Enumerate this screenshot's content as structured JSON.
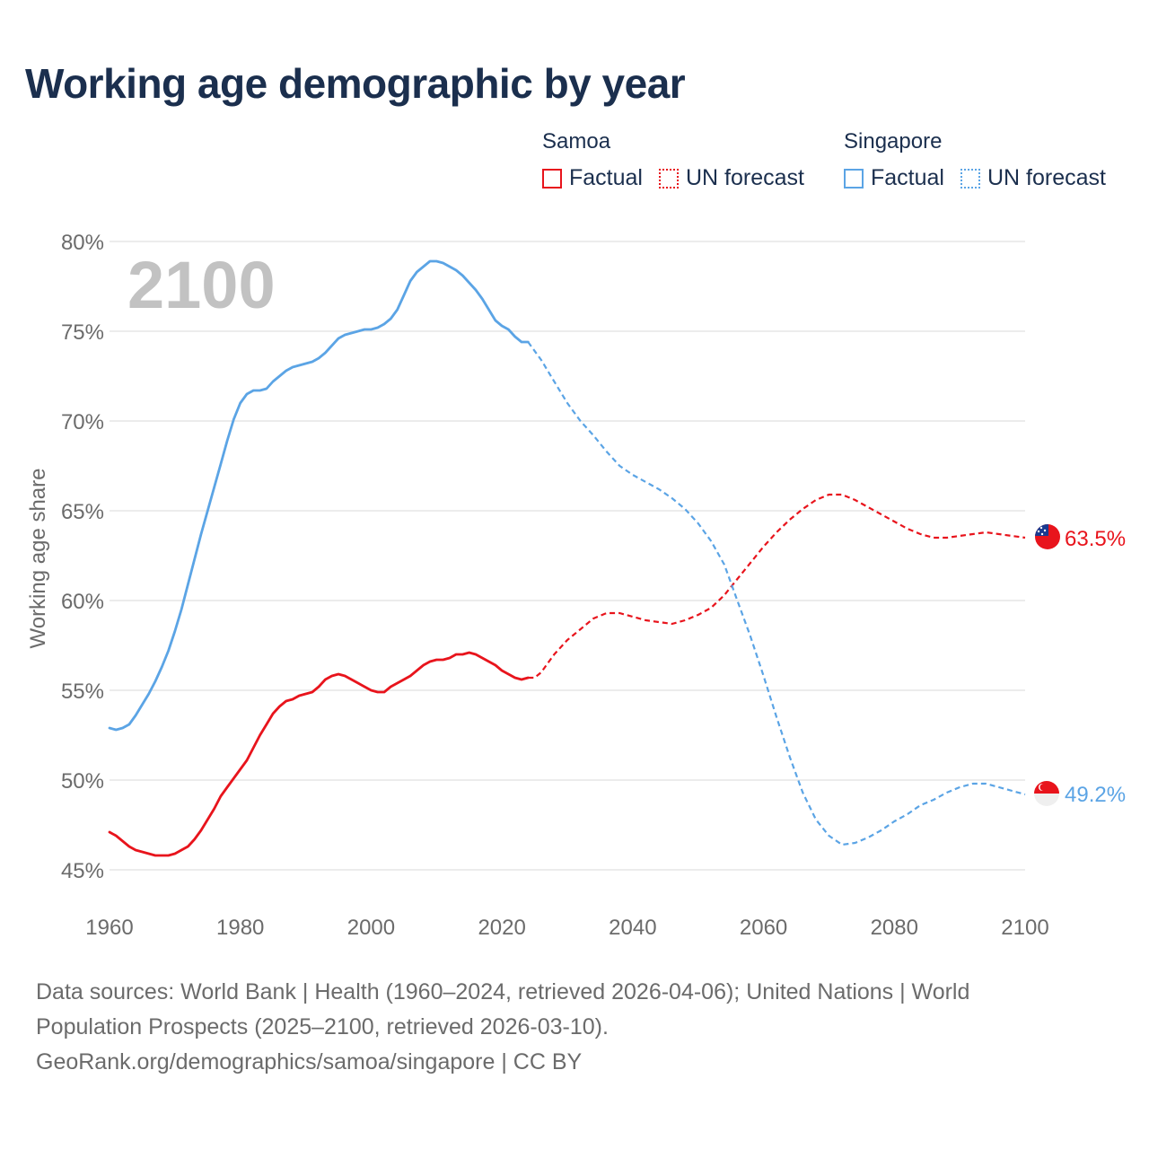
{
  "title": "Working age demographic by year",
  "legend": {
    "samoa": {
      "name": "Samoa",
      "factual": "Factual",
      "forecast": "UN forecast"
    },
    "singapore": {
      "name": "Singapore",
      "factual": "Factual",
      "forecast": "UN forecast"
    }
  },
  "year_watermark": "2100",
  "sources": {
    "line1": "Data sources: World Bank | Health (1960–2024, retrieved 2026-04-06); United Nations | World",
    "line2": "Population Prospects (2025–2100, retrieved 2026-03-10).",
    "line3": "GeoRank.org/demographics/samoa/singapore | CC BY"
  },
  "colors": {
    "samoa": "#e8141c",
    "singapore": "#5ba4e5",
    "grid": "#e6e6e6",
    "axis_text": "#6b6b6b",
    "title": "#1b2f4e",
    "watermark": "#c2c2c2"
  },
  "chart_data": {
    "type": "line",
    "title": "Working age demographic by year",
    "xlabel": "",
    "ylabel": "Working age share",
    "xlim": [
      1960,
      2100
    ],
    "ylim": [
      45,
      80
    ],
    "x_ticks": [
      1960,
      1980,
      2000,
      2020,
      2040,
      2060,
      2080,
      2100
    ],
    "x_tick_labels": [
      "1960",
      "1980",
      "2000",
      "2020",
      "2040",
      "2060",
      "2080",
      "2100"
    ],
    "y_ticks": [
      45,
      50,
      55,
      60,
      65,
      70,
      75,
      80
    ],
    "y_tick_labels": [
      "45%",
      "50%",
      "55%",
      "60%",
      "65%",
      "70%",
      "75%",
      "80%"
    ],
    "grid": true,
    "series": [
      {
        "name": "Samoa",
        "color": "#e8141c",
        "end_label": "63.5%",
        "factual": {
          "x": [
            1960,
            1961,
            1962,
            1963,
            1964,
            1965,
            1966,
            1967,
            1968,
            1969,
            1970,
            1971,
            1972,
            1973,
            1974,
            1975,
            1976,
            1977,
            1978,
            1979,
            1980,
            1981,
            1982,
            1983,
            1984,
            1985,
            1986,
            1987,
            1988,
            1989,
            1990,
            1991,
            1992,
            1993,
            1994,
            1995,
            1996,
            1997,
            1998,
            1999,
            2000,
            2001,
            2002,
            2003,
            2004,
            2005,
            2006,
            2007,
            2008,
            2009,
            2010,
            2011,
            2012,
            2013,
            2014,
            2015,
            2016,
            2017,
            2018,
            2019,
            2020,
            2021,
            2022,
            2023,
            2024
          ],
          "y": [
            47.1,
            46.9,
            46.6,
            46.3,
            46.1,
            46.0,
            45.9,
            45.8,
            45.8,
            45.8,
            45.9,
            46.1,
            46.3,
            46.7,
            47.2,
            47.8,
            48.4,
            49.1,
            49.6,
            50.1,
            50.6,
            51.1,
            51.8,
            52.5,
            53.1,
            53.7,
            54.1,
            54.4,
            54.5,
            54.7,
            54.8,
            54.9,
            55.2,
            55.6,
            55.8,
            55.9,
            55.8,
            55.6,
            55.4,
            55.2,
            55.0,
            54.9,
            54.9,
            55.2,
            55.4,
            55.6,
            55.8,
            56.1,
            56.4,
            56.6,
            56.7,
            56.7,
            56.8,
            57.0,
            57.0,
            57.1,
            57.0,
            56.8,
            56.6,
            56.4,
            56.1,
            55.9,
            55.7,
            55.6,
            55.7
          ]
        },
        "forecast": {
          "x": [
            2024,
            2025,
            2026,
            2027,
            2028,
            2030,
            2032,
            2034,
            2036,
            2038,
            2040,
            2042,
            2044,
            2046,
            2048,
            2050,
            2052,
            2054,
            2056,
            2058,
            2060,
            2062,
            2064,
            2066,
            2068,
            2070,
            2072,
            2074,
            2076,
            2078,
            2080,
            2082,
            2084,
            2086,
            2088,
            2090,
            2092,
            2094,
            2096,
            2098,
            2100
          ],
          "y": [
            55.7,
            55.7,
            56.0,
            56.5,
            57.0,
            57.8,
            58.4,
            59.0,
            59.3,
            59.3,
            59.1,
            58.9,
            58.8,
            58.7,
            58.9,
            59.2,
            59.6,
            60.3,
            61.2,
            62.1,
            63.0,
            63.8,
            64.5,
            65.1,
            65.6,
            65.9,
            65.9,
            65.6,
            65.2,
            64.8,
            64.4,
            64.0,
            63.7,
            63.5,
            63.5,
            63.6,
            63.7,
            63.8,
            63.7,
            63.6,
            63.5
          ]
        }
      },
      {
        "name": "Singapore",
        "color": "#5ba4e5",
        "end_label": "49.2%",
        "factual": {
          "x": [
            1960,
            1961,
            1962,
            1963,
            1964,
            1965,
            1966,
            1967,
            1968,
            1969,
            1970,
            1971,
            1972,
            1973,
            1974,
            1975,
            1976,
            1977,
            1978,
            1979,
            1980,
            1981,
            1982,
            1983,
            1984,
            1985,
            1986,
            1987,
            1988,
            1989,
            1990,
            1991,
            1992,
            1993,
            1994,
            1995,
            1996,
            1997,
            1998,
            1999,
            2000,
            2001,
            2002,
            2003,
            2004,
            2005,
            2006,
            2007,
            2008,
            2009,
            2010,
            2011,
            2012,
            2013,
            2014,
            2015,
            2016,
            2017,
            2018,
            2019,
            2020,
            2021,
            2022,
            2023,
            2024
          ],
          "y": [
            52.9,
            52.8,
            52.9,
            53.1,
            53.6,
            54.2,
            54.8,
            55.5,
            56.3,
            57.2,
            58.3,
            59.5,
            60.9,
            62.3,
            63.7,
            65.0,
            66.3,
            67.6,
            68.9,
            70.1,
            71.0,
            71.5,
            71.7,
            71.7,
            71.8,
            72.2,
            72.5,
            72.8,
            73.0,
            73.1,
            73.2,
            73.3,
            73.5,
            73.8,
            74.2,
            74.6,
            74.8,
            74.9,
            75.0,
            75.1,
            75.1,
            75.2,
            75.4,
            75.7,
            76.2,
            77.0,
            77.8,
            78.3,
            78.6,
            78.9,
            78.9,
            78.8,
            78.6,
            78.4,
            78.1,
            77.7,
            77.3,
            76.8,
            76.2,
            75.6,
            75.3,
            75.1,
            74.7,
            74.4,
            74.4
          ]
        },
        "forecast": {
          "x": [
            2024,
            2026,
            2028,
            2030,
            2032,
            2034,
            2036,
            2038,
            2040,
            2042,
            2044,
            2046,
            2048,
            2050,
            2052,
            2054,
            2056,
            2058,
            2060,
            2062,
            2064,
            2066,
            2068,
            2070,
            2072,
            2074,
            2076,
            2078,
            2080,
            2082,
            2084,
            2086,
            2088,
            2090,
            2092,
            2094,
            2096,
            2098,
            2100
          ],
          "y": [
            74.4,
            73.4,
            72.2,
            71.0,
            70.0,
            69.2,
            68.3,
            67.5,
            67.0,
            66.6,
            66.2,
            65.7,
            65.1,
            64.3,
            63.3,
            62.0,
            60.0,
            58.0,
            55.8,
            53.5,
            51.3,
            49.3,
            47.8,
            46.9,
            46.4,
            46.5,
            46.8,
            47.2,
            47.7,
            48.1,
            48.6,
            48.9,
            49.3,
            49.6,
            49.8,
            49.8,
            49.6,
            49.4,
            49.2
          ]
        }
      }
    ]
  }
}
